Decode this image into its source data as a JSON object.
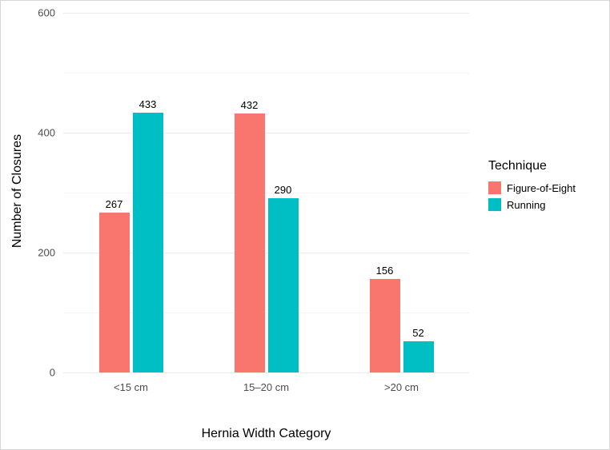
{
  "chart_data": {
    "type": "bar",
    "title": "",
    "categories": [
      "<15 cm",
      "15–20 cm",
      ">20 cm"
    ],
    "series": [
      {
        "name": "Figure-of-Eight",
        "color": "#F8766D",
        "values": [
          267,
          432,
          156
        ]
      },
      {
        "name": "Running",
        "color": "#00BFC4",
        "values": [
          433,
          290,
          52
        ]
      }
    ],
    "xlabel": "Hernia Width Category",
    "ylabel": "Number of Closures",
    "ylim": [
      0,
      600
    ],
    "yticks": [
      0,
      200,
      400,
      600
    ],
    "yticks_minor": [
      100,
      300,
      500
    ],
    "bar_labels": true,
    "grid": true,
    "legend_title": "Technique",
    "legend_position": "right",
    "colors": {
      "figure_of_eight": "#F8766D",
      "running": "#00BFC4",
      "grid_major": "#ebebeb",
      "axis_text": "#4d4d4d"
    }
  }
}
